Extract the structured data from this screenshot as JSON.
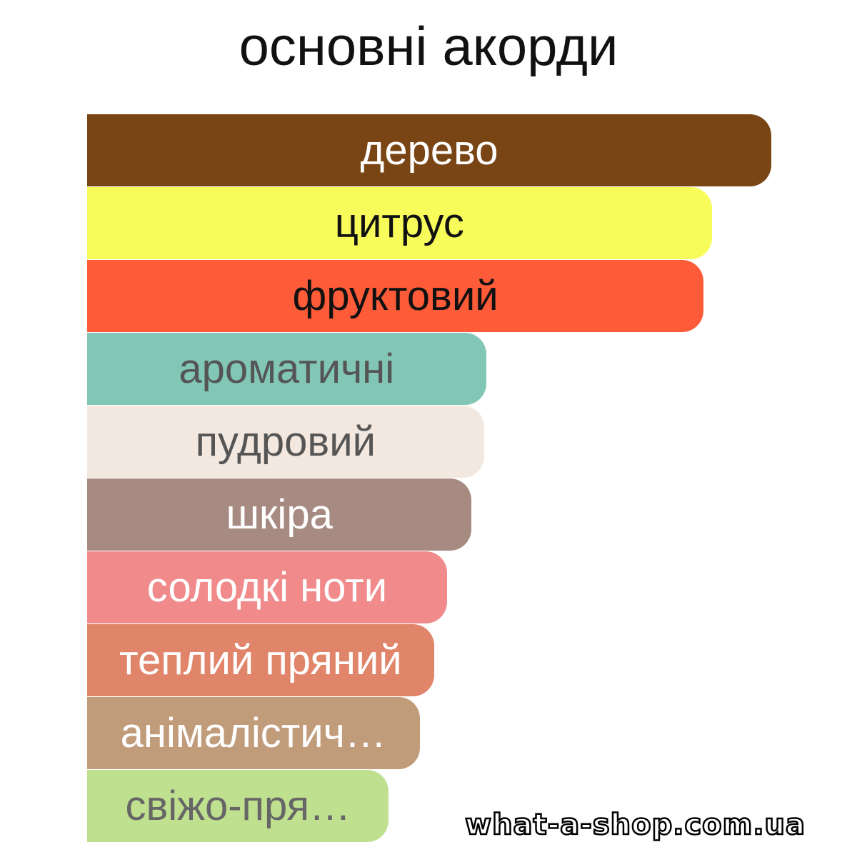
{
  "chart_data": {
    "type": "bar",
    "orientation": "horizontal",
    "title": "основні акорди",
    "categories": [
      "дерево",
      "цитрус",
      "фруктовий",
      "ароматичні",
      "пудровий",
      "шкіра",
      "солодкі ноти",
      "теплий пряний",
      "анімалістич…",
      "свіжо-пря…"
    ],
    "values": [
      100,
      91.3,
      90.1,
      58.3,
      58.0,
      56.2,
      52.6,
      50.7,
      48.6,
      44.1
    ],
    "colors": [
      "#7A4515",
      "#F8FC5A",
      "#FE5B38",
      "#82C6B6",
      "#F2E8DF",
      "#A78B82",
      "#F18A8A",
      "#E0856A",
      "#C09C7B",
      "#BFE08F"
    ],
    "label_colors": [
      "#ffffff",
      "#111111",
      "#111111",
      "#555555",
      "#555555",
      "#ffffff",
      "#ffffff",
      "#ffffff",
      "#ffffff",
      "#666666"
    ],
    "xlim": [
      0,
      100
    ],
    "grid": false,
    "legend": "none"
  },
  "watermark": "what-a-shop.com.ua"
}
